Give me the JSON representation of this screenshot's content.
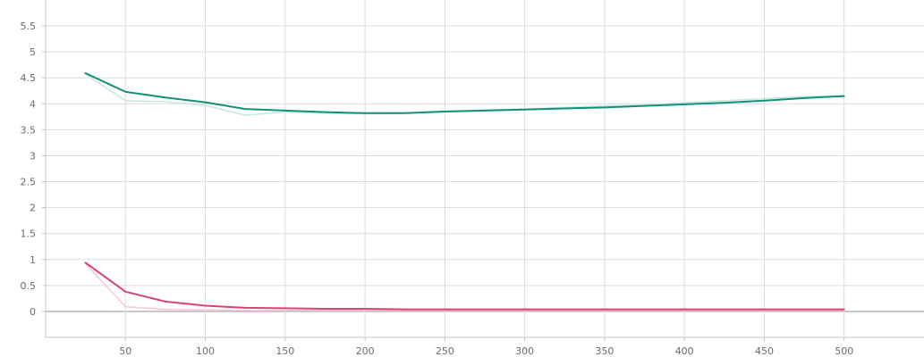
{
  "chart_data": {
    "type": "line",
    "title": "",
    "xlabel": "",
    "ylabel": "",
    "xlim": [
      0,
      550
    ],
    "ylim": [
      -0.5,
      6
    ],
    "grid": true,
    "legend": "none",
    "x_ticks": [
      "50",
      "100",
      "150",
      "200",
      "250",
      "300",
      "350",
      "400",
      "450",
      "500"
    ],
    "y_ticks": [
      "0",
      "0.5",
      "1",
      "1.5",
      "2",
      "2.5",
      "3",
      "3.5",
      "4",
      "4.5",
      "5",
      "5.5"
    ],
    "series": [
      {
        "color": "#c9e9e0",
        "x": [
          25,
          50,
          75,
          100,
          125,
          150,
          175,
          200,
          225,
          250,
          275,
          300,
          325,
          350,
          375,
          400,
          425,
          450,
          475,
          500
        ],
        "values": [
          4.57,
          4.06,
          4.04,
          3.97,
          3.78,
          3.84,
          3.82,
          3.81,
          3.82,
          3.86,
          3.88,
          3.9,
          3.93,
          3.96,
          3.98,
          4.02,
          4.06,
          4.1,
          4.14,
          4.15
        ]
      },
      {
        "color": "#0f9277",
        "x": [
          25,
          50,
          75,
          100,
          125,
          150,
          175,
          200,
          225,
          250,
          275,
          300,
          325,
          350,
          375,
          400,
          425,
          450,
          475,
          500
        ],
        "values": [
          4.59,
          4.23,
          4.12,
          4.03,
          3.9,
          3.87,
          3.84,
          3.82,
          3.82,
          3.85,
          3.87,
          3.89,
          3.91,
          3.93,
          3.96,
          3.99,
          4.02,
          4.06,
          4.11,
          4.15
        ]
      },
      {
        "color": "#f8cbd8",
        "x": [
          25,
          50,
          75,
          100,
          125,
          150,
          175,
          200,
          225,
          250,
          275,
          300,
          325,
          350,
          375,
          400,
          425,
          450,
          475,
          500
        ],
        "values": [
          0.92,
          0.09,
          0.04,
          0.03,
          0.02,
          0.02,
          0.02,
          0.02,
          0.02,
          0.02,
          0.02,
          0.02,
          0.02,
          0.02,
          0.02,
          0.02,
          0.02,
          0.02,
          0.02,
          0.02
        ]
      },
      {
        "color": "#d9417a",
        "x": [
          25,
          50,
          75,
          100,
          125,
          150,
          175,
          200,
          225,
          250,
          275,
          300,
          325,
          350,
          375,
          400,
          425,
          450,
          475,
          500
        ],
        "values": [
          0.94,
          0.38,
          0.19,
          0.11,
          0.07,
          0.06,
          0.05,
          0.05,
          0.04,
          0.04,
          0.04,
          0.04,
          0.04,
          0.04,
          0.04,
          0.04,
          0.04,
          0.04,
          0.04,
          0.04
        ]
      }
    ]
  }
}
